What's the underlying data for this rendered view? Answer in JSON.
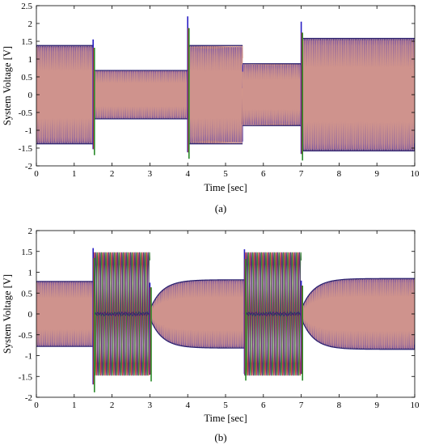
{
  "figure": {
    "panels": [
      {
        "caption": "(a)",
        "chart_data": {
          "type": "line",
          "title": "",
          "xlabel": "Time [sec]",
          "ylabel": "System Voltage [V]",
          "xlim": [
            0,
            10
          ],
          "ylim": [
            -2,
            2.5
          ],
          "xticks": [
            "0",
            "1",
            "2",
            "3",
            "4",
            "5",
            "6",
            "7",
            "8",
            "9",
            "10"
          ],
          "yticks": [
            "-2",
            "-1.5",
            "-1",
            "-0.5",
            "0",
            "0.5",
            "1",
            "1.5",
            "2",
            "2.5"
          ],
          "grid": false,
          "series_colors": [
            "#4b1e6e",
            "#2a1fc4",
            "#d89a8a",
            "#c85050",
            "#2a8a2a"
          ],
          "segments": [
            {
              "t_start": 0,
              "t_end": 1.5,
              "amplitude": 1.38
            },
            {
              "t_start": 1.5,
              "t_end": 4.0,
              "amplitude": 0.68
            },
            {
              "t_start": 4.0,
              "t_end": 5.45,
              "amplitude": 1.38
            },
            {
              "t_start": 5.45,
              "t_end": 7.0,
              "amplitude": 0.87
            },
            {
              "t_start": 7.0,
              "t_end": 10,
              "amplitude": 1.58
            }
          ],
          "spikes": [
            {
              "t": 1.5,
              "max": 1.55,
              "min": -1.7
            },
            {
              "t": 4.0,
              "max": 2.2,
              "min": -1.8
            },
            {
              "t": 7.0,
              "max": 2.05,
              "min": -1.85
            }
          ]
        }
      },
      {
        "caption": "(b)",
        "chart_data": {
          "type": "line",
          "title": "",
          "xlabel": "Time [sec]",
          "ylabel": "System Voltage [V]",
          "xlim": [
            0,
            10
          ],
          "ylim": [
            -2,
            2
          ],
          "xticks": [
            "0",
            "1",
            "2",
            "3",
            "4",
            "5",
            "6",
            "7",
            "8",
            "9",
            "10"
          ],
          "yticks": [
            "-2",
            "-1.5",
            "-1",
            "-0.5",
            "0",
            "0.5",
            "1",
            "1.5",
            "2"
          ],
          "grid": false,
          "series_colors": [
            "#4b1e6e",
            "#2a1fc4",
            "#d89a8a",
            "#c85050",
            "#2a8a2a"
          ],
          "segments": [
            {
              "t_start": 0,
              "t_end": 1.5,
              "amplitude": 0.78,
              "mode": "dense"
            },
            {
              "t_start": 1.5,
              "t_end": 3.0,
              "amplitude": 1.48,
              "mode": "fault"
            },
            {
              "t_start": 3.0,
              "t_end": 5.5,
              "amplitude": 0.82,
              "mode": "recovery"
            },
            {
              "t_start": 5.5,
              "t_end": 7.0,
              "amplitude": 1.48,
              "mode": "fault"
            },
            {
              "t_start": 7.0,
              "t_end": 10,
              "amplitude": 0.85,
              "mode": "recovery"
            }
          ],
          "spikes": [
            {
              "t": 1.5,
              "max": 1.58,
              "min": -1.88
            },
            {
              "t": 3.0,
              "max": 0.75,
              "min": -1.62
            },
            {
              "t": 5.5,
              "max": 1.55,
              "min": -1.6
            },
            {
              "t": 7.0,
              "max": 0.8,
              "min": -1.6
            }
          ]
        }
      }
    ]
  }
}
